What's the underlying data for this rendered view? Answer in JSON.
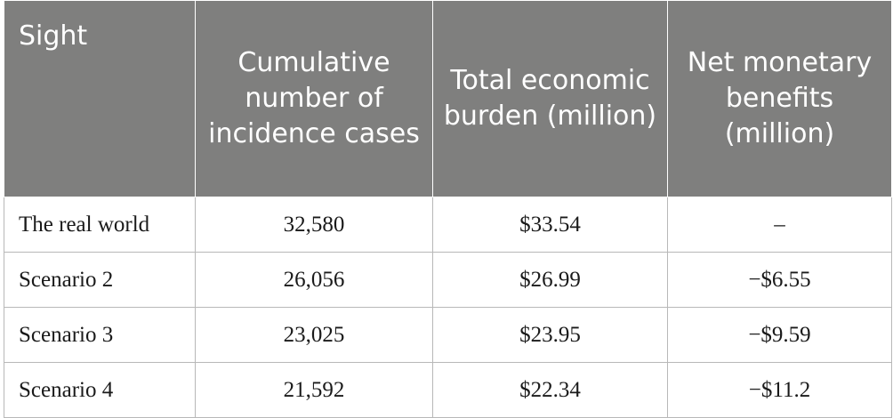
{
  "table": {
    "headers": [
      "Sight",
      "Cumulative number of incidence cases",
      "Total economic burden (million)",
      "Net monetary benefits (million)"
    ],
    "rows": [
      [
        "The real world",
        "32,580",
        "$33.54",
        "–"
      ],
      [
        "Scenario 2",
        "26,056",
        "$26.99",
        "−$6.55"
      ],
      [
        "Scenario 3",
        "23,025",
        "$23.95",
        "−$9.59"
      ],
      [
        "Scenario 4",
        "21,592",
        "$22.34",
        "−$11.2"
      ]
    ]
  }
}
